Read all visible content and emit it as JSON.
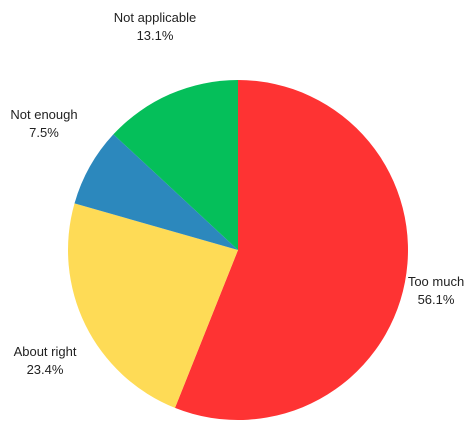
{
  "chart_data": {
    "type": "pie",
    "start_angle_deg": 0,
    "direction": "clockwise",
    "slices": [
      {
        "label": "Too much",
        "value": 56.1,
        "value_label": "56.1%",
        "color": "#fe3333"
      },
      {
        "label": "About right",
        "value": 23.4,
        "value_label": "23.4%",
        "color": "#fedb56"
      },
      {
        "label": "Not enough",
        "value": 7.5,
        "value_label": "7.5%",
        "color": "#2c88bd"
      },
      {
        "label": "Not applicable",
        "value": 13.1,
        "value_label": "13.1%",
        "color": "#05bf5a"
      }
    ]
  }
}
